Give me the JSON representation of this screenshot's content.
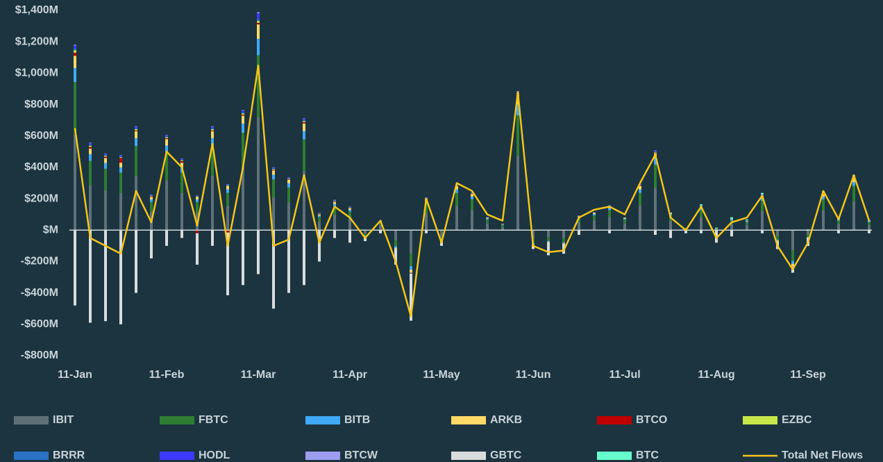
{
  "chart_data": {
    "type": "bar",
    "stacked": true,
    "categories": [
      "11-Jan",
      null,
      null,
      null,
      null,
      null,
      "11-Feb",
      null,
      null,
      null,
      null,
      null,
      "11-Mar",
      null,
      null,
      null,
      null,
      null,
      "11-Apr",
      null,
      null,
      null,
      null,
      null,
      "11-May",
      null,
      null,
      null,
      null,
      null,
      "11-Jun",
      null,
      null,
      null,
      null,
      null,
      "11-Jul",
      null,
      null,
      null,
      null,
      null,
      "11-Aug",
      null,
      null,
      null,
      null,
      null,
      "11-Sep",
      null,
      null,
      null,
      null
    ],
    "ylim": [
      -800,
      1400
    ],
    "yticks": [
      {
        "value": -800,
        "label": "-$800M"
      },
      {
        "value": -600,
        "label": "-$600M"
      },
      {
        "value": -400,
        "label": "-$400M"
      },
      {
        "value": -200,
        "label": "-$200M"
      },
      {
        "value": 0,
        "label": "$M"
      },
      {
        "value": 200,
        "label": "$200M"
      },
      {
        "value": 400,
        "label": "$400M"
      },
      {
        "value": 600,
        "label": "$600M"
      },
      {
        "value": 800,
        "label": "$800M"
      },
      {
        "value": 1000,
        "label": "$1,000M"
      },
      {
        "value": 1200,
        "label": "$1,200M"
      },
      {
        "value": 1400,
        "label": "$1,400M"
      }
    ],
    "series": [
      {
        "name": "IBIT",
        "color": "#5f7177",
        "values": [
          611,
          286,
          253,
          237,
          347,
          116,
          319,
          237,
          116,
          347,
          154,
          402,
          721,
          209,
          176,
          374,
          55,
          99,
          77,
          -22,
          33,
          -66,
          -149,
          110,
          -44,
          154,
          127,
          44,
          22,
          473,
          -55,
          -44,
          -50,
          50,
          61,
          83,
          44,
          154,
          270,
          61,
          0,
          83,
          6,
          39,
          33,
          121,
          -39,
          -127,
          -28,
          127,
          39,
          182,
          33
        ]
      },
      {
        "name": "FBTC",
        "color": "#2e7d32",
        "values": [
          333,
          156,
          138,
          129,
          189,
          63,
          174,
          129,
          63,
          189,
          84,
          219,
          393,
          114,
          96,
          204,
          30,
          54,
          42,
          -12,
          18,
          -36,
          -81,
          60,
          -24,
          84,
          69,
          24,
          12,
          258,
          -30,
          -24,
          -27,
          27,
          33,
          45,
          24,
          84,
          147,
          33,
          0,
          45,
          3,
          21,
          18,
          66,
          -21,
          -69,
          -15,
          69,
          21,
          99,
          18
        ]
      },
      {
        "name": "BITB",
        "color": "#3fa9f5",
        "values": [
          89,
          42,
          37,
          34,
          50,
          17,
          46,
          34,
          17,
          50,
          22,
          58,
          105,
          30,
          26,
          54,
          8,
          14,
          11,
          -3,
          5,
          -10,
          -22,
          16,
          -6,
          22,
          18,
          6,
          3,
          69,
          -8,
          -6,
          -7,
          7,
          9,
          12,
          6,
          22,
          39,
          9,
          0,
          12,
          1,
          6,
          5,
          18,
          -6,
          -18,
          -4,
          18,
          6,
          26,
          5
        ]
      },
      {
        "name": "ARKB",
        "color": "#ffd966",
        "values": [
          78,
          36,
          32,
          30,
          44,
          15,
          41,
          30,
          15,
          44,
          20,
          51,
          92,
          27,
          22,
          48,
          7,
          13,
          10,
          -3,
          4,
          -8,
          -19,
          14,
          -6,
          20,
          16,
          6,
          3,
          60,
          -7,
          -6,
          -6,
          6,
          8,
          11,
          6,
          20,
          34,
          8,
          0,
          11,
          1,
          5,
          4,
          15,
          -5,
          -16,
          -4,
          16,
          5,
          23,
          4
        ]
      },
      {
        "name": "BTCO",
        "color": "#c00000",
        "values": [
          20,
          10,
          8,
          30,
          5,
          4,
          6,
          10,
          -20,
          5,
          -15,
          6,
          10,
          4,
          3,
          8,
          2,
          3,
          2,
          0,
          1,
          0,
          -2,
          2,
          0,
          3,
          2,
          1,
          0,
          5,
          0,
          0,
          0,
          1,
          1,
          2,
          0,
          3,
          4,
          0,
          0,
          1,
          0,
          0,
          1,
          2,
          0,
          -1,
          0,
          2,
          0,
          3,
          0
        ]
      },
      {
        "name": "EZBC",
        "color": "#c6e64a",
        "values": [
          15,
          8,
          6,
          5,
          8,
          3,
          6,
          4,
          3,
          8,
          4,
          8,
          12,
          5,
          4,
          6,
          2,
          3,
          2,
          0,
          1,
          0,
          -1,
          2,
          0,
          3,
          2,
          1,
          0,
          6,
          0,
          0,
          0,
          1,
          1,
          1,
          0,
          2,
          4,
          1,
          0,
          1,
          0,
          0,
          0,
          2,
          0,
          0,
          0,
          2,
          0,
          2,
          0
        ]
      },
      {
        "name": "BRRR",
        "color": "#2a72c4",
        "values": [
          12,
          6,
          5,
          4,
          6,
          3,
          5,
          4,
          2,
          6,
          3,
          6,
          10,
          4,
          3,
          5,
          2,
          2,
          2,
          0,
          1,
          0,
          -1,
          1,
          0,
          2,
          1,
          1,
          0,
          4,
          0,
          0,
          0,
          1,
          1,
          1,
          0,
          2,
          3,
          1,
          0,
          1,
          0,
          0,
          0,
          1,
          0,
          0,
          0,
          1,
          0,
          2,
          0
        ]
      },
      {
        "name": "HODL",
        "color": "#3b3bff",
        "values": [
          18,
          10,
          8,
          6,
          10,
          4,
          8,
          6,
          3,
          10,
          5,
          12,
          40,
          6,
          5,
          10,
          3,
          4,
          3,
          0,
          1,
          0,
          -2,
          2,
          0,
          3,
          2,
          1,
          0,
          8,
          0,
          0,
          0,
          1,
          2,
          2,
          0,
          4,
          6,
          2,
          0,
          2,
          0,
          1,
          1,
          3,
          0,
          0,
          0,
          3,
          1,
          4,
          1
        ]
      },
      {
        "name": "BTCW",
        "color": "#9d9df0",
        "values": [
          5,
          3,
          2,
          2,
          3,
          1,
          2,
          2,
          1,
          3,
          1,
          3,
          6,
          2,
          1,
          3,
          1,
          1,
          1,
          0,
          0,
          0,
          0,
          1,
          0,
          1,
          1,
          0,
          0,
          2,
          0,
          0,
          0,
          0,
          0,
          1,
          0,
          1,
          2,
          0,
          0,
          1,
          0,
          0,
          0,
          1,
          0,
          0,
          0,
          1,
          0,
          1,
          0
        ]
      },
      {
        "name": "GBTC",
        "color": "#d9dcdc",
        "values": [
          -480,
          -590,
          -580,
          -600,
          -400,
          -180,
          -100,
          -50,
          -200,
          -100,
          -400,
          -350,
          -280,
          -500,
          -400,
          -350,
          -200,
          -50,
          -80,
          -30,
          -20,
          -100,
          -300,
          -20,
          -20,
          0,
          0,
          0,
          0,
          0,
          -20,
          -80,
          -60,
          -30,
          0,
          -20,
          0,
          0,
          -30,
          -50,
          -20,
          -20,
          -80,
          -40,
          0,
          -20,
          -50,
          -40,
          -50,
          0,
          -20,
          0,
          -20
        ]
      },
      {
        "name": "BTC",
        "color": "#66ffcc",
        "values": [
          0,
          0,
          0,
          0,
          0,
          0,
          0,
          0,
          0,
          0,
          0,
          0,
          0,
          0,
          0,
          0,
          0,
          0,
          0,
          0,
          0,
          0,
          0,
          0,
          0,
          0,
          0,
          0,
          0,
          0,
          0,
          0,
          0,
          0,
          0,
          0,
          0,
          0,
          0,
          0,
          12,
          8,
          5,
          10,
          6,
          8,
          4,
          3,
          5,
          9,
          6,
          8,
          4
        ]
      }
    ],
    "line_series": {
      "name": "Total Net Flows",
      "color": "#f5c518",
      "values": [
        650,
        -50,
        -100,
        -150,
        250,
        50,
        500,
        400,
        30,
        550,
        -100,
        400,
        1050,
        -100,
        -60,
        350,
        -80,
        150,
        80,
        -50,
        60,
        -200,
        -550,
        200,
        -80,
        300,
        250,
        100,
        60,
        880,
        -100,
        -140,
        -130,
        80,
        130,
        150,
        100,
        300,
        480,
        80,
        0,
        150,
        -50,
        50,
        80,
        220,
        -100,
        -250,
        -80,
        250,
        70,
        350,
        60
      ]
    }
  }
}
